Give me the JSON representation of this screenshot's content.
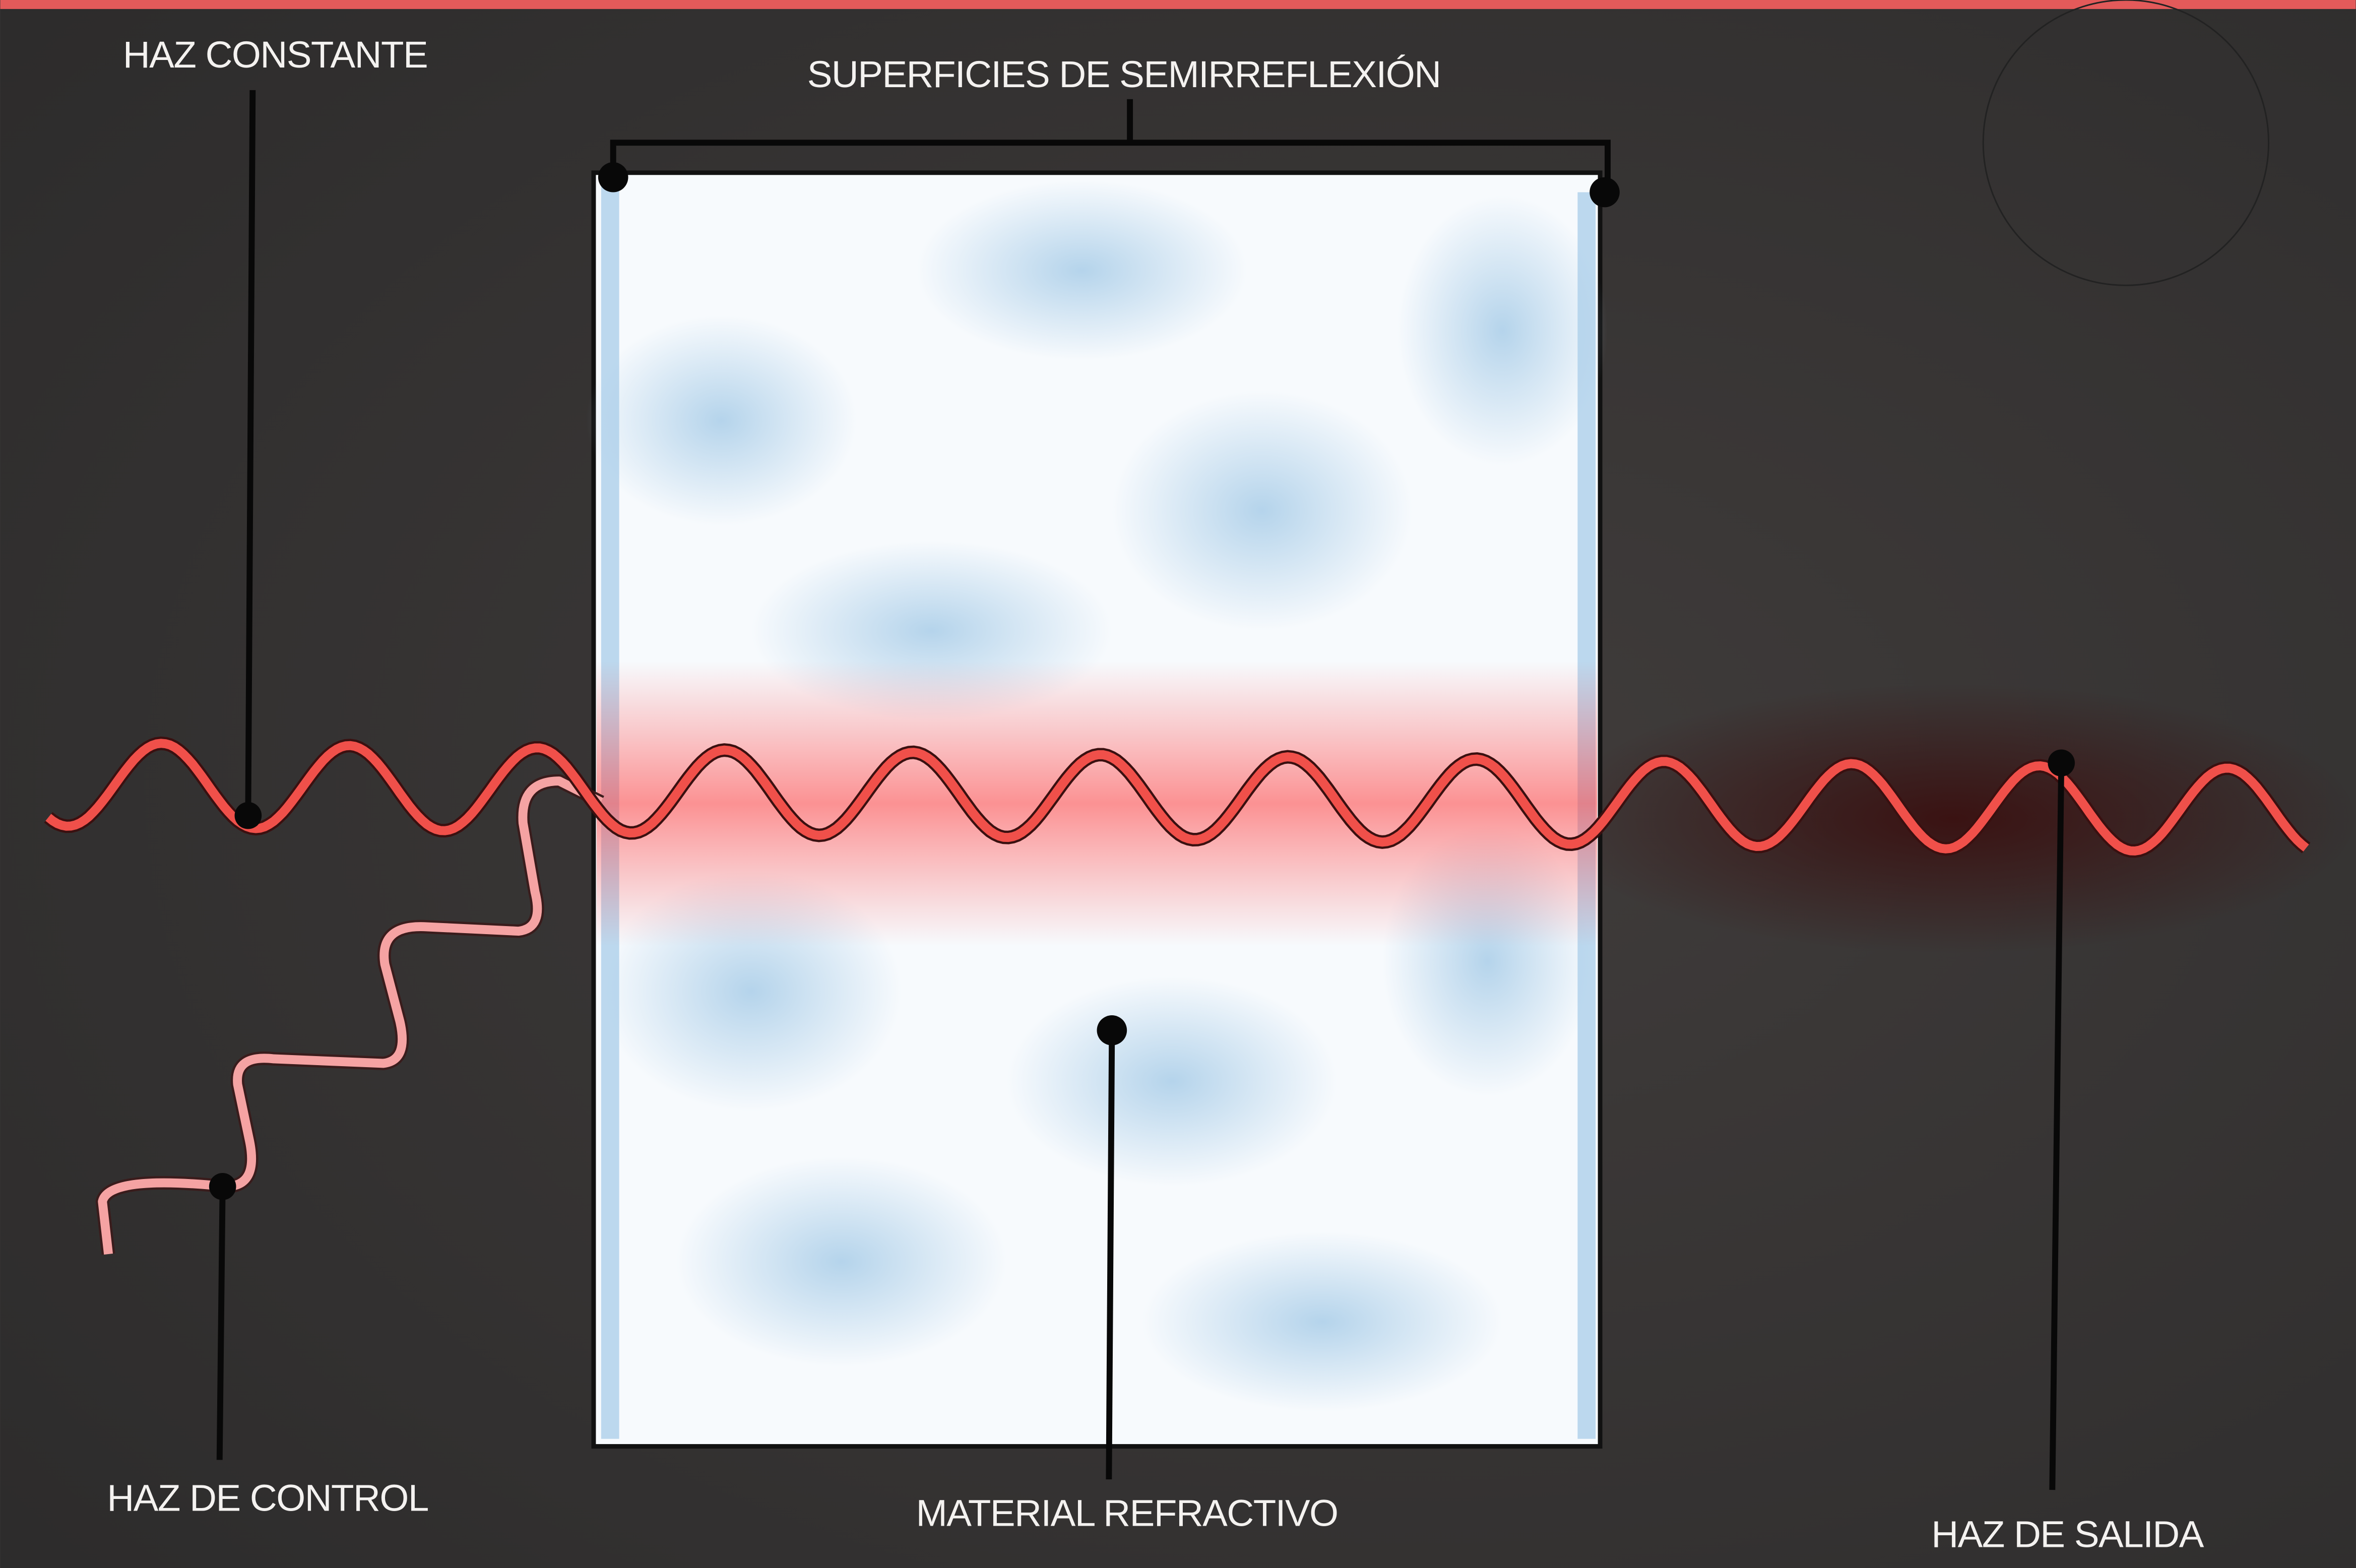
{
  "labels": {
    "haz_constante": "HAZ CONSTANTE",
    "superficies": "SUPERFICIES DE SEMIRREFLEXIÓN",
    "haz_de_control": "HAZ DE CONTROL",
    "material": "MATERIAL REFRACTIVO",
    "haz_de_salida": "HAZ DE SALIDA"
  }
}
